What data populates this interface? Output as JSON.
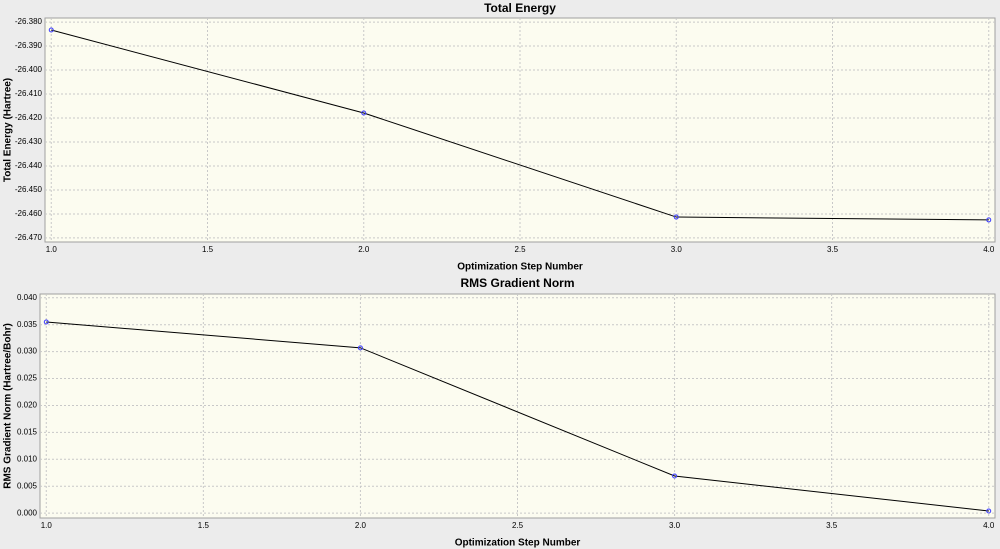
{
  "chart_data": [
    {
      "type": "line",
      "title": "Total Energy",
      "x_label": "Optimization Step Number",
      "y_label": "Total Energy (Hartree)",
      "x": [
        1,
        2,
        3,
        4
      ],
      "values": [
        -26.3833,
        -26.4179,
        -26.4613,
        -26.4625
      ],
      "line_color": "#000000",
      "marker_color": "#3a3aff",
      "xlim": [
        0.98,
        4.02
      ],
      "ylim": [
        -26.4717,
        -26.3783
      ],
      "xticks": [
        {
          "value": 1,
          "label": "1.0"
        },
        {
          "value": 1.5,
          "label": "1.5"
        },
        {
          "value": 2,
          "label": "2.0"
        },
        {
          "value": 2.5,
          "label": "2.5"
        },
        {
          "value": 3,
          "label": "3.0"
        },
        {
          "value": 3.5,
          "label": "3.5"
        },
        {
          "value": 4,
          "label": "4.0"
        }
      ],
      "yticks": [
        {
          "value": -26.38,
          "label": "-26.380"
        },
        {
          "value": -26.39,
          "label": "-26.390"
        },
        {
          "value": -26.4,
          "label": "-26.400"
        },
        {
          "value": -26.41,
          "label": "-26.410"
        },
        {
          "value": -26.42,
          "label": "-26.420"
        },
        {
          "value": -26.43,
          "label": "-26.430"
        },
        {
          "value": -26.44,
          "label": "-26.440"
        },
        {
          "value": -26.45,
          "label": "-26.450"
        },
        {
          "value": -26.46,
          "label": "-26.460"
        },
        {
          "value": -26.47,
          "label": "-26.470"
        }
      ],
      "grid": true
    },
    {
      "type": "line",
      "title": "RMS Gradient Norm",
      "x_label": "Optimization Step Number",
      "y_label": "RMS Gradient Norm (Hartree/Bohr)",
      "x": [
        1,
        2,
        3,
        4
      ],
      "values": [
        0.0355,
        0.0307,
        0.0069,
        0.0004
      ],
      "line_color": "#000000",
      "marker_color": "#3a3aff",
      "xlim": [
        0.98,
        4.02
      ],
      "ylim": [
        -0.0009,
        0.0407
      ],
      "xticks": [
        {
          "value": 1,
          "label": "1.0"
        },
        {
          "value": 1.5,
          "label": "1.5"
        },
        {
          "value": 2,
          "label": "2.0"
        },
        {
          "value": 2.5,
          "label": "2.5"
        },
        {
          "value": 3,
          "label": "3.0"
        },
        {
          "value": 3.5,
          "label": "3.5"
        },
        {
          "value": 4,
          "label": "4.0"
        }
      ],
      "yticks": [
        {
          "value": 0,
          "label": "0.000"
        },
        {
          "value": 0.005,
          "label": "0.005"
        },
        {
          "value": 0.01,
          "label": "0.010"
        },
        {
          "value": 0.015,
          "label": "0.015"
        },
        {
          "value": 0.02,
          "label": "0.020"
        },
        {
          "value": 0.025,
          "label": "0.025"
        },
        {
          "value": 0.03,
          "label": "0.030"
        },
        {
          "value": 0.035,
          "label": "0.035"
        },
        {
          "value": 0.04,
          "label": "0.040"
        }
      ],
      "grid": true
    }
  ]
}
